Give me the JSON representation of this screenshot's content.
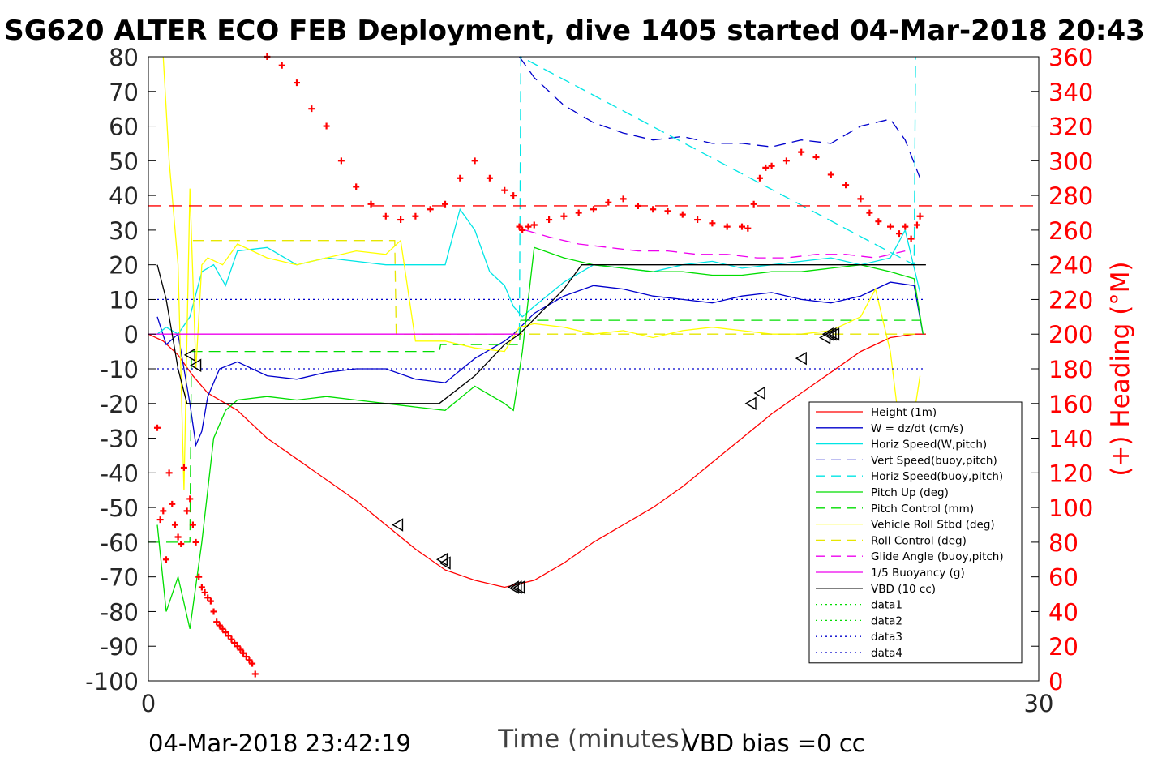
{
  "chart_data": {
    "type": "line",
    "title": "SG620 ALTER ECO FEB Deployment, dive 1405 started 04-Mar-2018 20:43",
    "xlabel": "Time (minutes)",
    "ylabel": "",
    "y2label": "(+) Heading (°M)",
    "xlim": [
      0,
      30
    ],
    "ylim": [
      -100,
      80
    ],
    "y2lim": [
      0,
      360
    ],
    "x_ticks": [
      "0",
      "30"
    ],
    "y_ticks": [
      "80",
      "70",
      "60",
      "50",
      "40",
      "30",
      "20",
      "10",
      "0",
      "-10",
      "-20",
      "-30",
      "-40",
      "-50",
      "-60",
      "-70",
      "-80",
      "-90",
      "-100"
    ],
    "y2_ticks": [
      "360",
      "340",
      "320",
      "300",
      "280",
      "260",
      "240",
      "220",
      "200",
      "180",
      "160",
      "140",
      "120",
      "100",
      "80",
      "60",
      "40",
      "20",
      "0"
    ],
    "grid": false,
    "legend_position": "bottom-right",
    "footer_left": "04-Mar-2018 23:42:19",
    "footer_right": "VBD bias =0 cc",
    "colors": {
      "height": "#ff0000",
      "w": "#0000cc",
      "horiz_speed": "#00e5e5",
      "vert_speed_buoy": "#0000cc",
      "horiz_speed_buoy": "#00e5e5",
      "pitch_up": "#00dd00",
      "pitch_control": "#00dd00",
      "roll": "#ffff00",
      "roll_control": "#e6e600",
      "glide_angle": "#ee00ee",
      "buoyancy": "#ee00ee",
      "vbd": "#000000",
      "heading": "#ff0000",
      "axis_right": "#ff0000"
    },
    "series": [
      {
        "name": "Height (1m)",
        "key": "height",
        "style": "solid",
        "x": [
          0,
          0.5,
          1.0,
          1.5,
          2.0,
          3.0,
          4.0,
          5.0,
          6.0,
          7.0,
          8.0,
          9.0,
          10.0,
          11.0,
          12.0,
          13.0,
          14.0,
          15.0,
          16.0,
          17.0,
          18.0,
          19.0,
          20.0,
          21.0,
          22.0,
          23.0,
          24.0,
          25.0,
          25.8,
          26.2
        ],
        "y": [
          0,
          -2,
          -6,
          -12,
          -17,
          -22,
          -30,
          -36,
          -42,
          -48,
          -55,
          -62,
          -68,
          -71,
          -73,
          -71,
          -66,
          -60,
          -55,
          -50,
          -44,
          -37,
          -30,
          -23,
          -17,
          -11,
          -5,
          -1,
          0,
          0
        ]
      },
      {
        "name": "W = dz/dt (cm/s)",
        "key": "w",
        "style": "solid",
        "x": [
          0.3,
          0.6,
          1.0,
          1.4,
          1.6,
          1.8,
          2.0,
          2.4,
          3.0,
          4.0,
          5.0,
          6.0,
          7.0,
          8.0,
          9.0,
          10.0,
          11.0,
          12.0,
          12.3,
          13.0,
          14.0,
          15.0,
          16.0,
          17.0,
          18.0,
          19.0,
          20.0,
          21.0,
          22.0,
          23.0,
          24.0,
          25.0,
          25.8,
          26.1
        ],
        "y": [
          5,
          -3,
          0,
          -20,
          -32,
          -28,
          -18,
          -10,
          -8,
          -12,
          -13,
          -11,
          -10,
          -10,
          -13,
          -14,
          -7,
          -2,
          0,
          6,
          11,
          14,
          13,
          11,
          10,
          9,
          11,
          12,
          10,
          9,
          11,
          15,
          14,
          0
        ]
      },
      {
        "name": "Horiz Speed(W,pitch)",
        "key": "horiz_speed",
        "style": "solid",
        "x": [
          0.3,
          0.6,
          1.0,
          1.4,
          1.8,
          2.2,
          2.6,
          3.0,
          4.0,
          5.0,
          6.0,
          7.0,
          8.0,
          9.0,
          10.0,
          10.5,
          11.0,
          11.5,
          12.0,
          12.3,
          12.6,
          13.0,
          14.0,
          15.0,
          16.0,
          17.0,
          18.0,
          19.0,
          20.0,
          21.0,
          22.0,
          23.0,
          24.0,
          25.0,
          25.5,
          26.0
        ],
        "y": [
          0,
          2,
          0,
          5,
          18,
          20,
          14,
          24,
          25,
          20,
          22,
          21,
          20,
          20,
          20,
          36,
          30,
          18,
          14,
          8,
          5,
          8,
          15,
          20,
          19,
          18,
          20,
          21,
          19,
          20,
          21,
          22,
          20,
          22,
          30,
          12
        ]
      },
      {
        "name": "Vert Speed(buoy,pitch)",
        "key": "vert_speed_buoy",
        "style": "dash",
        "x": [
          12.5,
          13.0,
          14.0,
          15.0,
          16.0,
          17.0,
          18.0,
          19.0,
          20.0,
          21.0,
          22.0,
          23.0,
          24.0,
          25.0,
          25.5,
          26.0
        ],
        "y": [
          80,
          74,
          66,
          61,
          58,
          56,
          57,
          55,
          55,
          54,
          56,
          55,
          60,
          62,
          56,
          45
        ]
      },
      {
        "name": "Horiz Speed(buoy,pitch)",
        "key": "horiz_speed_buoy",
        "style": "dash",
        "x": [
          12.5,
          12.55,
          25.8,
          25.85
        ],
        "y": [
          0,
          80,
          20,
          80
        ]
      },
      {
        "name": "Pitch Up (deg)",
        "key": "pitch_up",
        "style": "solid",
        "x": [
          0.3,
          0.6,
          1.0,
          1.4,
          1.8,
          2.2,
          2.6,
          3.0,
          4.0,
          5.0,
          6.0,
          7.0,
          8.0,
          9.0,
          10.0,
          11.0,
          12.0,
          12.3,
          12.6,
          13.0,
          14.0,
          15.0,
          16.0,
          17.0,
          18.0,
          19.0,
          20.0,
          21.0,
          22.0,
          23.0,
          24.0,
          25.0,
          25.8,
          26.1
        ],
        "y": [
          -55,
          -80,
          -70,
          -85,
          -60,
          -30,
          -22,
          -19,
          -18,
          -19,
          -18,
          -19,
          -20,
          -21,
          -22,
          -15,
          -20,
          -22,
          -5,
          25,
          22,
          20,
          19,
          18,
          18,
          17,
          17,
          18,
          18,
          19,
          20,
          18,
          16,
          0
        ]
      },
      {
        "name": "Pitch Control (mm)",
        "key": "pitch_control",
        "style": "dash",
        "x": [
          0,
          1.4,
          1.45,
          9.8,
          9.85,
          12.5,
          12.55,
          26.0
        ],
        "y": [
          -60,
          -60,
          -5,
          -5,
          -3,
          -3,
          4,
          4
        ]
      },
      {
        "name": "Vehicle Roll Stbd (deg)",
        "key": "roll",
        "style": "solid",
        "x": [
          0.5,
          0.7,
          1.0,
          1.2,
          1.4,
          1.6,
          1.8,
          2.0,
          2.5,
          3.0,
          4.0,
          5.0,
          6.0,
          7.0,
          8.0,
          8.5,
          9.0,
          10.0,
          11.0,
          12.0,
          12.5,
          13.0,
          14.0,
          15.0,
          16.0,
          17.0,
          18.0,
          19.0,
          20.0,
          21.0,
          22.0,
          23.0,
          24.0,
          24.5,
          25.0,
          25.5,
          26.0
        ],
        "y": [
          80,
          50,
          20,
          -45,
          42,
          -10,
          20,
          22,
          20,
          26,
          22,
          20,
          22,
          24,
          23,
          27,
          -2,
          -2,
          -4,
          -5,
          2,
          3,
          2,
          0,
          1,
          -1,
          1,
          2,
          1,
          0,
          0,
          1,
          5,
          13,
          -5,
          -40,
          -12
        ]
      },
      {
        "name": "Roll Control (deg)",
        "key": "roll_control",
        "style": "dash",
        "x": [
          1.5,
          8.3,
          8.35,
          26.0
        ],
        "y": [
          27,
          27,
          0,
          0
        ]
      },
      {
        "name": "Glide Angle (buoy,pitch)",
        "key": "glide_angle",
        "style": "dash",
        "x": [
          12.7,
          13.5,
          14.5,
          15.5,
          16.5,
          17.5,
          18.5,
          19.5,
          20.5,
          21.5,
          22.5,
          23.5,
          24.5,
          25.5
        ],
        "y": [
          30,
          28,
          26,
          25,
          24,
          24,
          23,
          23,
          22,
          22,
          23,
          23,
          22,
          24
        ]
      },
      {
        "name": "1/5 Buoyancy (g)",
        "key": "buoyancy",
        "style": "solid",
        "x": [
          0,
          12.5
        ],
        "y": [
          0,
          0
        ]
      },
      {
        "name": "VBD (10 cc)",
        "key": "vbd",
        "style": "solid",
        "x": [
          0.3,
          0.6,
          1.0,
          1.3,
          9.0,
          9.8,
          11.0,
          12.0,
          12.5,
          14.0,
          14.6,
          25.5,
          26.2
        ],
        "y": [
          20,
          10,
          -10,
          -20,
          -20,
          -20,
          -12,
          -3,
          0,
          13,
          20,
          20,
          20
        ]
      },
      {
        "name": "data1",
        "key": "data1",
        "style": "dot",
        "x": [],
        "y": []
      },
      {
        "name": "data2",
        "key": "data2",
        "style": "dot",
        "x": [],
        "y": []
      },
      {
        "name": "data3",
        "key": "data3",
        "style": "dot",
        "x": [
          0.3,
          26.2
        ],
        "y": [
          10,
          10
        ]
      },
      {
        "name": "data4",
        "key": "data4",
        "style": "dot",
        "x": [
          0.3,
          26.2
        ],
        "y": [
          -10,
          -10
        ]
      }
    ],
    "heading_mean_line": {
      "y2": 274
    },
    "heading_points": {
      "x": [
        0.3,
        0.4,
        0.5,
        0.6,
        0.7,
        0.8,
        0.9,
        1.0,
        1.1,
        1.2,
        1.3,
        1.4,
        1.5,
        1.6,
        1.7,
        1.8,
        1.9,
        2.0,
        2.1,
        2.2,
        2.3,
        2.4,
        2.5,
        2.6,
        2.7,
        2.8,
        2.9,
        3.0,
        3.1,
        3.2,
        3.3,
        3.4,
        3.5,
        3.6,
        4.0,
        4.5,
        5.0,
        5.5,
        6.0,
        6.5,
        7.0,
        7.5,
        8.0,
        8.5,
        9.0,
        9.5,
        10.0,
        10.5,
        11.0,
        11.5,
        12.0,
        12.3,
        12.5,
        12.6,
        12.8,
        13.0,
        13.5,
        14.0,
        14.5,
        15.0,
        15.5,
        16.0,
        16.5,
        17.0,
        17.5,
        18.0,
        18.5,
        19.0,
        19.5,
        20.0,
        20.2,
        20.4,
        20.6,
        20.8,
        21.0,
        21.5,
        22.0,
        22.5,
        23.0,
        23.5,
        24.0,
        24.3,
        24.6,
        25.0,
        25.3,
        25.5,
        25.7,
        25.9,
        26.0
      ],
      "y2": [
        146,
        93,
        98,
        70,
        120,
        102,
        90,
        83,
        79,
        123,
        98,
        105,
        90,
        80,
        60,
        54,
        51,
        48,
        46,
        40,
        34,
        32,
        30,
        28,
        26,
        24,
        22,
        20,
        18,
        16,
        14,
        12,
        10,
        4,
        360,
        355,
        345,
        330,
        320,
        300,
        285,
        275,
        268,
        266,
        268,
        272,
        275,
        290,
        300,
        290,
        283,
        280,
        262,
        260,
        262,
        263,
        266,
        268,
        270,
        272,
        276,
        278,
        274,
        272,
        271,
        269,
        266,
        264,
        262,
        262,
        261,
        275,
        290,
        296,
        297,
        300,
        305,
        302,
        292,
        286,
        278,
        270,
        265,
        262,
        258,
        262,
        255,
        263,
        268
      ]
    },
    "triangles": {
      "x": [
        1.4,
        1.6,
        8.4,
        9.9,
        10.0,
        12.3,
        12.4,
        12.5,
        20.3,
        20.6,
        22.0,
        22.8,
        22.9,
        23.0,
        23.1
      ],
      "y": [
        -6,
        -9,
        -55,
        -65,
        -66,
        -73,
        -73,
        -73,
        -20,
        -17,
        -7,
        -1,
        0,
        0,
        0
      ]
    }
  }
}
